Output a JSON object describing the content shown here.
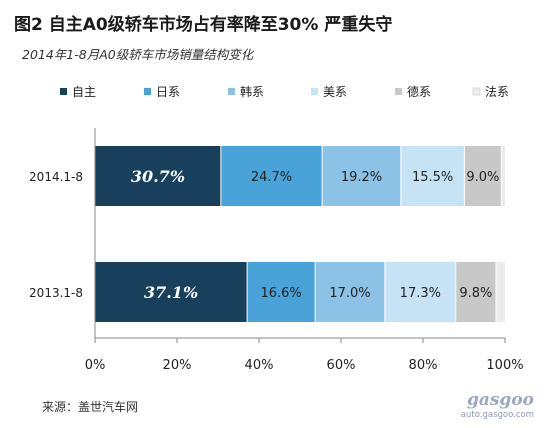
{
  "header": {
    "title": "图2  自主A0级轿车市场占有率降至30% 严重失守",
    "subtitle": "2014年1-8月A0级轿车市场销量结构变化"
  },
  "footer": {
    "source": "来源：盖世汽车网"
  },
  "watermark": {
    "main": "gasgoo",
    "url": "auto.gasgoo.com"
  },
  "chart_data": {
    "type": "bar",
    "orientation": "horizontal",
    "stacked": "percent",
    "categories": [
      "2014.1-8",
      "2013.1-8"
    ],
    "series": [
      {
        "name": "自主",
        "color": "#183f5c",
        "values": [
          30.7,
          37.1
        ],
        "labels": [
          "30.7%",
          "37.1%"
        ]
      },
      {
        "name": "日系",
        "color": "#4aa3d8",
        "values": [
          24.7,
          16.6
        ],
        "labels": [
          "24.7%",
          "16.6%"
        ]
      },
      {
        "name": "韩系",
        "color": "#8cc2e6",
        "values": [
          19.2,
          17.0
        ],
        "labels": [
          "19.2%",
          "17.0%"
        ]
      },
      {
        "name": "美系",
        "color": "#c6e3f5",
        "values": [
          15.5,
          17.3
        ],
        "labels": [
          "15.5%",
          "17.3%"
        ]
      },
      {
        "name": "德系",
        "color": "#c8c8c8",
        "values": [
          9.0,
          9.8
        ],
        "labels": [
          "9.0%",
          "9.8%"
        ]
      },
      {
        "name": "法系",
        "color": "#ececec",
        "values": [
          0.9,
          2.2
        ],
        "labels": [
          "",
          ""
        ]
      }
    ],
    "xlim": [
      0,
      100
    ],
    "xticks": [
      0,
      20,
      40,
      60,
      80,
      100
    ],
    "xtick_labels": [
      "0%",
      "20%",
      "40%",
      "60%",
      "80%",
      "100%"
    ],
    "legend_position": "top",
    "grid": false
  }
}
